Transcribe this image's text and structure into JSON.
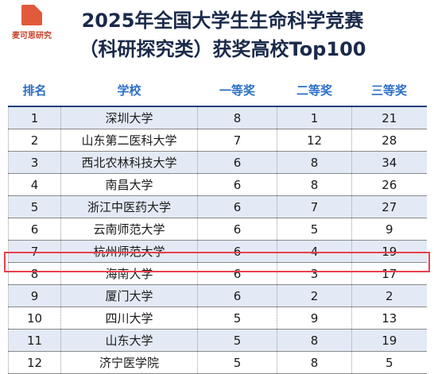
{
  "logo": {
    "text": "麦可思研究"
  },
  "title": {
    "line1": "2025年全国大学生生命科学竞赛",
    "line2": "（科研探究类）获奖高校Top100"
  },
  "table": {
    "headers": [
      "排名",
      "学校",
      "一等奖",
      "二等奖",
      "三等奖"
    ],
    "rows": [
      [
        "1",
        "深圳大学",
        "8",
        "1",
        "21"
      ],
      [
        "2",
        "山东第二医科大学",
        "7",
        "12",
        "28"
      ],
      [
        "3",
        "西北农林科技大学",
        "6",
        "8",
        "34"
      ],
      [
        "4",
        "南昌大学",
        "6",
        "8",
        "26"
      ],
      [
        "5",
        "浙江中医药大学",
        "6",
        "7",
        "27"
      ],
      [
        "6",
        "云南师范大学",
        "6",
        "5",
        "9"
      ],
      [
        "7",
        "杭州师范大学",
        "6",
        "4",
        "19"
      ],
      [
        "8",
        "海南大学",
        "6",
        "3",
        "17"
      ],
      [
        "9",
        "厦门大学",
        "6",
        "2",
        "2"
      ],
      [
        "10",
        "四川大学",
        "5",
        "9",
        "13"
      ],
      [
        "11",
        "山东大学",
        "5",
        "8",
        "19"
      ],
      [
        "12",
        "济宁医学院",
        "5",
        "8",
        "5"
      ]
    ],
    "highlighted_rank": "8"
  },
  "colors": {
    "header_text": "#2b6fc6",
    "title_text": "#1b2a4a",
    "alt_row": "#e3eaf6",
    "highlight_border": "#e8414d",
    "logo": "#e15a3c"
  }
}
